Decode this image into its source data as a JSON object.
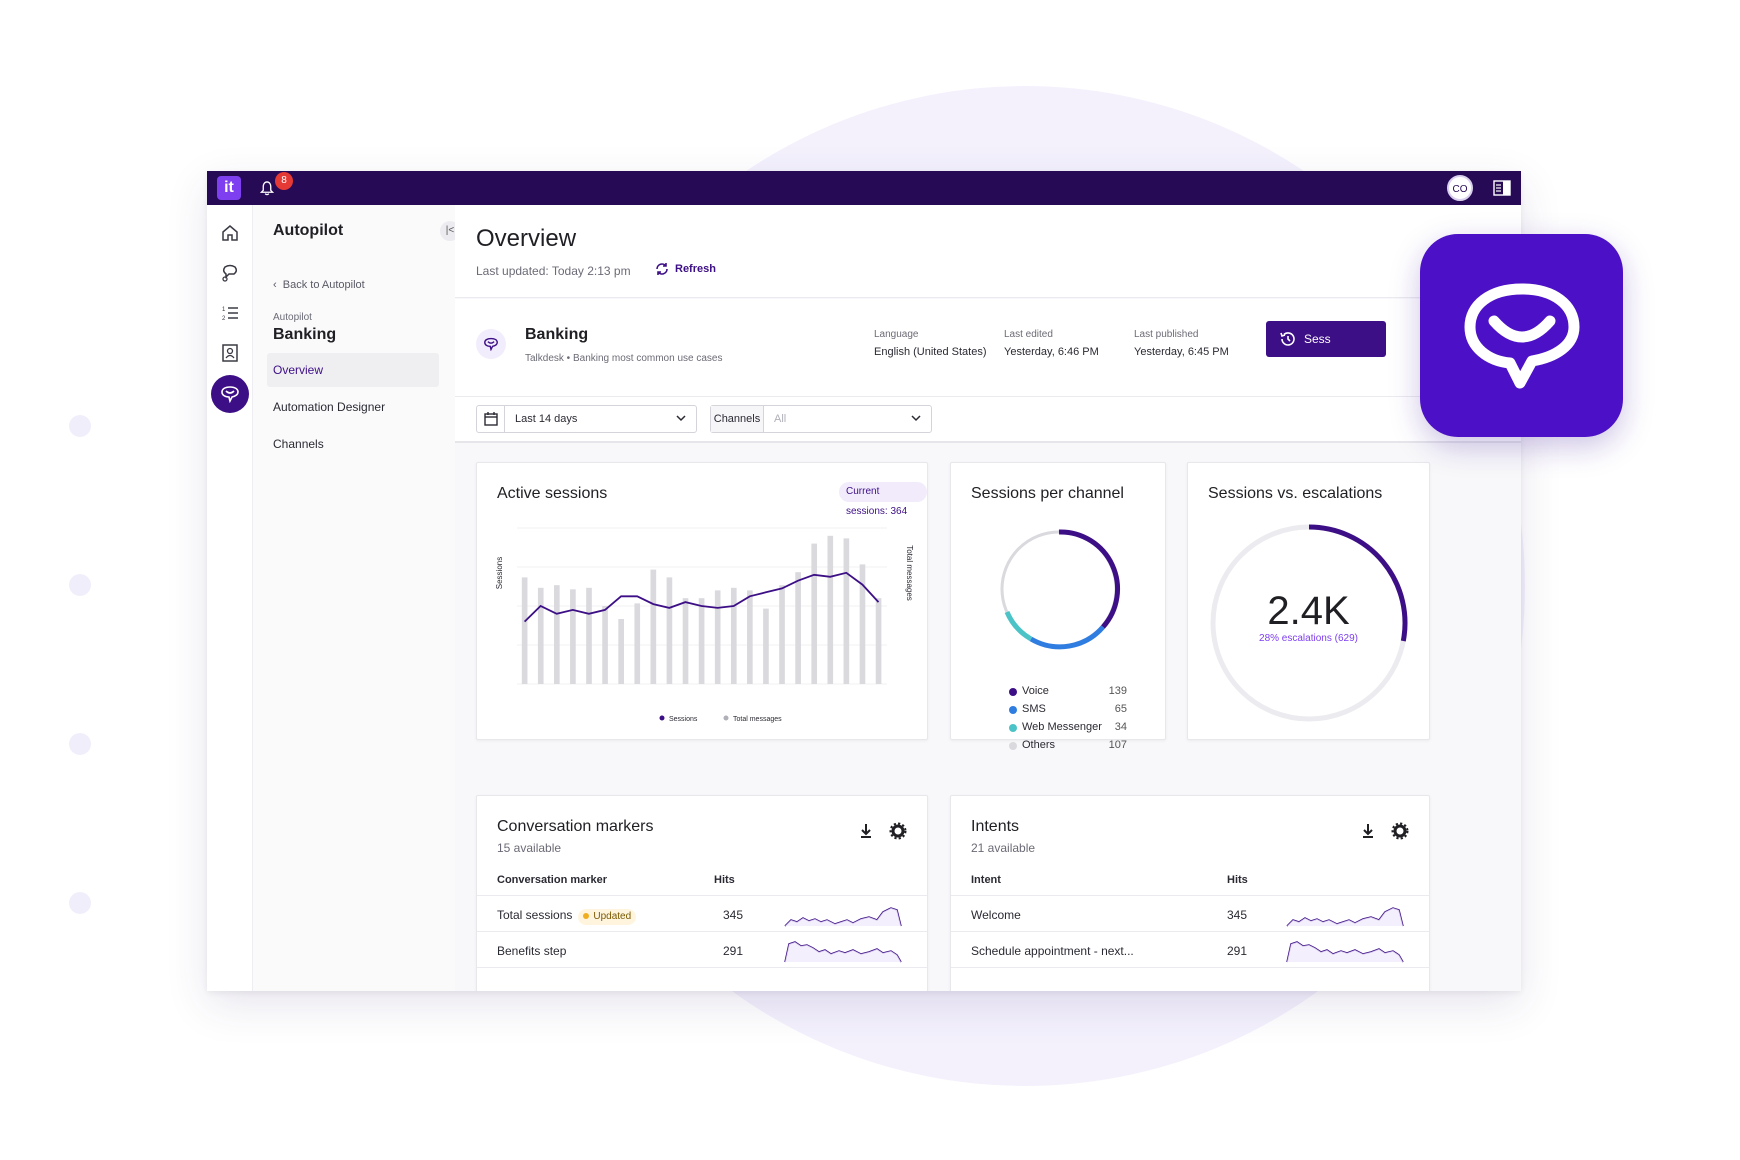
{
  "topbar": {
    "logo": "it",
    "notifications": "8",
    "avatar": "CO"
  },
  "nav": {
    "title": "Autopilot",
    "back": "Back to Autopilot",
    "crumb": "Autopilot",
    "subtitle": "Banking",
    "items": [
      {
        "label": "Overview",
        "active": true
      },
      {
        "label": "Automation Designer",
        "active": false
      },
      {
        "label": "Channels",
        "active": false
      }
    ]
  },
  "header": {
    "title": "Overview",
    "last_updated": "Last updated: Today 2:13 pm",
    "refresh": "Refresh"
  },
  "bot": {
    "name": "Banking",
    "source": "Talkdesk • Banking most common use cases",
    "language_label": "Language",
    "language": "English (United States)",
    "edited_label": "Last edited",
    "edited": "Yesterday, 6:46 PM",
    "published_label": "Last published",
    "published": "Yesterday, 6:45 PM",
    "sessions_button": "Sess"
  },
  "filters": {
    "date": "Last 14 days",
    "channels_label": "Channels",
    "channels_value": "All"
  },
  "active_sessions": {
    "title": "Active sessions",
    "badge": "Current sessions: 364",
    "ylabel_left": "Sessions",
    "ylabel_right": "Total messages",
    "legend": [
      "Sessions",
      "Total messages"
    ]
  },
  "sessions_per_channel": {
    "title": "Sessions per channel",
    "items": [
      {
        "name": "Voice",
        "value": "139",
        "color": "#3d0f86"
      },
      {
        "name": "SMS",
        "value": "65",
        "color": "#2f7de1"
      },
      {
        "name": "Web Messenger",
        "value": "34",
        "color": "#4cc3c7"
      },
      {
        "name": "Others",
        "value": "107",
        "color": "#d9d9de"
      }
    ]
  },
  "escalations": {
    "title": "Sessions vs. escalations",
    "value": "2.4K",
    "label": "28% escalations (629)",
    "fraction": 0.28
  },
  "markers": {
    "title": "Conversation markers",
    "sub": "15 available",
    "col1": "Conversation marker",
    "col2": "Hits",
    "rows": [
      {
        "name": "Total sessions",
        "badge": "Updated",
        "hits": "345"
      },
      {
        "name": "Benefits step",
        "badge": "",
        "hits": "291"
      }
    ]
  },
  "intents": {
    "title": "Intents",
    "sub": "21 available",
    "col1": "Intent",
    "col2": "Hits",
    "rows": [
      {
        "name": "Welcome",
        "hits": "345"
      },
      {
        "name": "Schedule appointment - next...",
        "hits": "291"
      }
    ]
  },
  "chart_data": {
    "type": "bar",
    "title": "Active sessions",
    "ylabel": "Sessions",
    "y2label": "Total messages",
    "ylim": [
      0,
      400
    ],
    "y2lim": [
      0,
      3000
    ],
    "series": [
      {
        "name": "Total messages",
        "values": [
          2050,
          1850,
          1900,
          1820,
          1850,
          1500,
          1250,
          1550,
          2200,
          2050,
          1650,
          1650,
          1800,
          1850,
          1800,
          1450,
          1900,
          2150,
          2700,
          2850,
          2800,
          2300,
          1650
        ]
      },
      {
        "name": "Sessions",
        "values": [
          160,
          200,
          180,
          190,
          180,
          190,
          225,
          225,
          205,
          195,
          210,
          200,
          195,
          200,
          225,
          235,
          245,
          265,
          280,
          275,
          285,
          255,
          210
        ]
      }
    ]
  }
}
